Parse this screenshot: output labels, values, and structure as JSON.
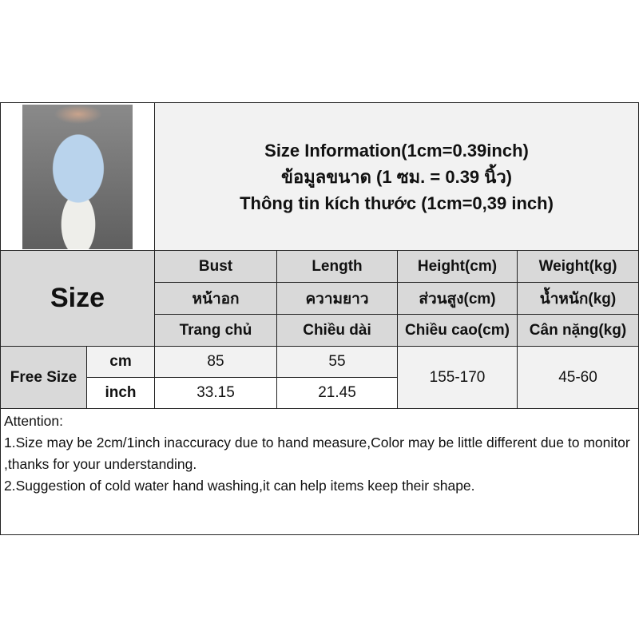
{
  "title_lines": [
    "Size Information(1cm=0.39inch)",
    "ข้อมูลขนาด (1 ซม. = 0.39 นิ้ว)",
    "Thông tin kích thước (1cm=0,39 inch)"
  ],
  "size_label": "Size",
  "columns": [
    {
      "en": "Bust",
      "th": "หน้าอก",
      "vi": "Trang chủ"
    },
    {
      "en": "Length",
      "th": "ความยาว",
      "vi": "Chiều dài"
    },
    {
      "en": "Height(cm)",
      "th": "ส่วนสูง(cm)",
      "vi": "Chiều cao(cm)"
    },
    {
      "en": "Weight(kg)",
      "th": "น้ำหนัก(kg)",
      "vi": "Cân nặng(kg)"
    }
  ],
  "rows": {
    "size_name": "Free Size",
    "cm": {
      "unit": "cm",
      "bust": "85",
      "length": "55"
    },
    "inch": {
      "unit": "inch",
      "bust": "33.15",
      "length": "21.45"
    },
    "height": "155-170",
    "weight": "45-60"
  },
  "attention": {
    "heading": "Attention:",
    "items": [
      "1.Size may be 2cm/1inch inaccuracy due to hand measure,Color may be little different due to monitor ,thanks for your understanding.",
      "2.Suggestion of cold water hand washing,it can help items keep their shape."
    ]
  }
}
